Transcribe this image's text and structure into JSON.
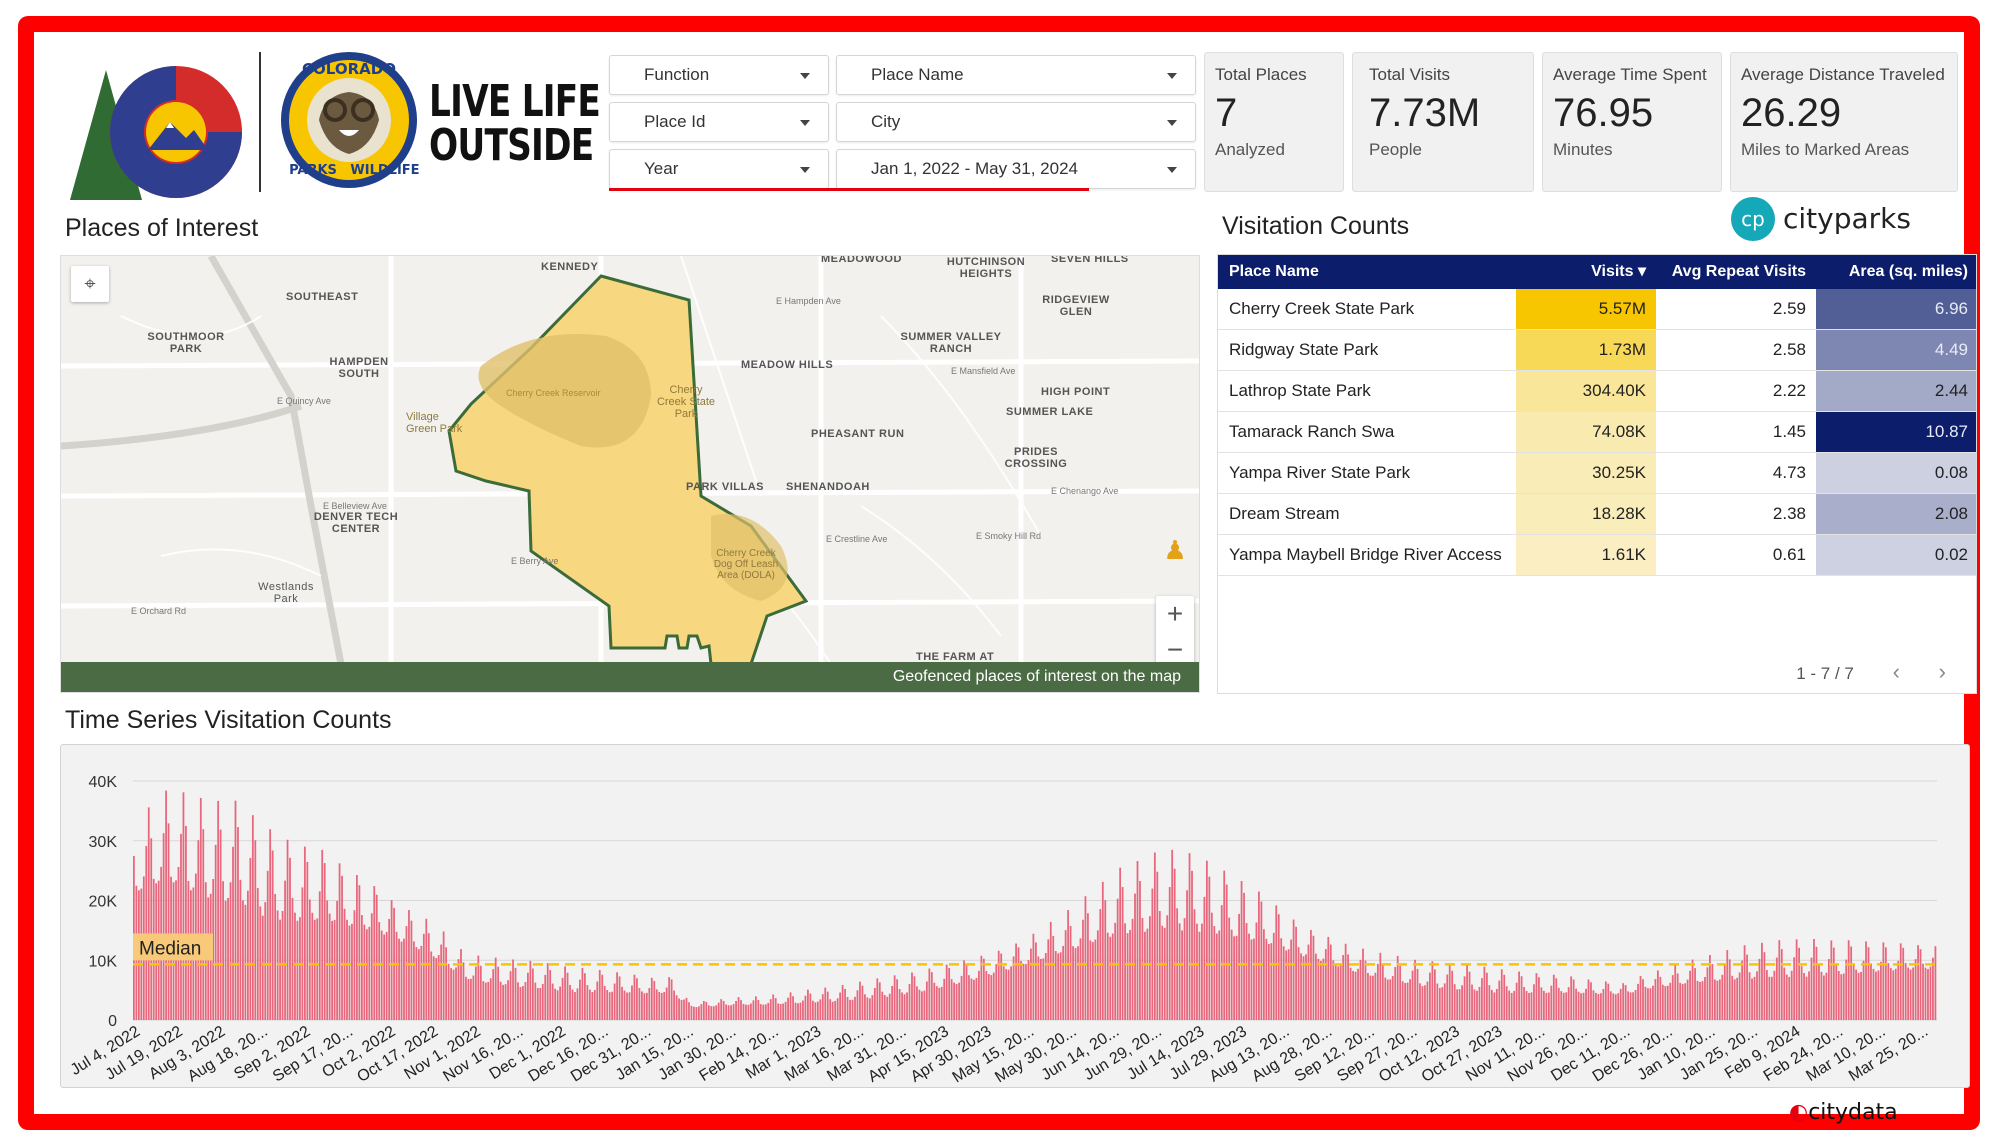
{
  "header": {
    "logo_text_line1": "LIVE LIFE",
    "logo_text_line2": "OUTSIDE",
    "cpw_logo_words": [
      "COLORADO",
      "PARKS",
      "WILDLIFE"
    ]
  },
  "filters": [
    {
      "label": "Function"
    },
    {
      "label": "Place Name"
    },
    {
      "label": "Place Id"
    },
    {
      "label": "City"
    },
    {
      "label": "Year"
    },
    {
      "label": "Jan 1, 2022 - May 31, 2024"
    }
  ],
  "kpis": [
    {
      "label": "Total Places",
      "value": "7",
      "sub": "Analyzed"
    },
    {
      "label": "Total Visits",
      "value": "7.73M",
      "sub": "People"
    },
    {
      "label": "Average Time Spent",
      "value": "76.95",
      "sub": "Minutes"
    },
    {
      "label": "Average Distance Traveled",
      "value": "26.29",
      "sub": "Miles to Marked Areas"
    }
  ],
  "map": {
    "title": "Places of Interest",
    "caption": "Geofenced places of interest on the map",
    "labels": [
      "KENNEDY",
      "SOUTHEAST",
      "SOUTHMOOR PARK",
      "HAMPDEN SOUTH",
      "MEADOW HILLS",
      "SUMMER VALLEY RANCH",
      "RIDGEVIEW GLEN",
      "HIGH POINT",
      "PHEASANT RUN",
      "SUMMER LAKE",
      "PRIDES CROSSING",
      "PARK VILLAS",
      "SHENANDOAH",
      "DENVER TECH CENTER",
      "Westlands Park",
      "HUTCHINSON HEIGHTS",
      "THE FARM AT",
      "MEADOWOOD",
      "SEVEN HILLS"
    ],
    "streets": [
      "E Quincy Ave",
      "E Hampden Ave",
      "E Belleview Ave",
      "E Orchard Rd",
      "E Berry Ave",
      "E Crestline Ave",
      "E Smoky Hill Rd",
      "E Mansfield Ave",
      "E Chenango Ave"
    ],
    "poi_labels": [
      "Cherry Creek Reservoir",
      "Cherry Creek State Park",
      "Village Green Park",
      "Cherry Creek Dog Off Leash Area (DOLA)"
    ],
    "zoom_in": "+",
    "zoom_out": "−"
  },
  "table": {
    "title": "Visitation Counts",
    "brand": "cityparks",
    "brand_mark": "cp",
    "columns": {
      "name": "Place Name",
      "visits": "Visits ▾",
      "repeat": "Avg Repeat Visits",
      "area": "Area (sq. miles)"
    },
    "rows": [
      {
        "name": "Cherry Creek State Park",
        "visits": "5.57M",
        "repeat": "2.59",
        "area": "6.96",
        "visits_intensity": 1.0,
        "area_intensity": 0.64
      },
      {
        "name": "Ridgway State Park",
        "visits": "1.73M",
        "repeat": "2.58",
        "area": "4.49",
        "visits_intensity": 0.31,
        "area_intensity": 0.41
      },
      {
        "name": "Lathrop State Park",
        "visits": "304.40K",
        "repeat": "2.22",
        "area": "2.44",
        "visits_intensity": 0.05,
        "area_intensity": 0.22
      },
      {
        "name": "Tamarack Ranch Swa",
        "visits": "74.08K",
        "repeat": "1.45",
        "area": "10.87",
        "visits_intensity": 0.013,
        "area_intensity": 1.0
      },
      {
        "name": "Yampa River State Park",
        "visits": "30.25K",
        "repeat": "4.73",
        "area": "0.08",
        "visits_intensity": 0.005,
        "area_intensity": 0.007
      },
      {
        "name": "Dream Stream",
        "visits": "18.28K",
        "repeat": "2.38",
        "area": "2.08",
        "visits_intensity": 0.003,
        "area_intensity": 0.19
      },
      {
        "name": "Yampa Maybell Bridge River Access",
        "visits": "1.61K",
        "repeat": "0.61",
        "area": "0.02",
        "visits_intensity": 0.0003,
        "area_intensity": 0.002
      }
    ],
    "pager": "1 - 7 / 7",
    "prev": "‹",
    "next": "›"
  },
  "colors": {
    "frame": "#ff0000",
    "header_bg": "#0c1d6b",
    "visits_max": "#f7c600",
    "area_max": "#0c1d6b",
    "bar": "#e8677c",
    "median": "#f7c600",
    "map_poly": "#f7d77f",
    "map_poly_stroke": "#3c6b3a"
  },
  "chart_data": {
    "type": "bar",
    "title": "Time Series Visitation Counts",
    "x_tick_labels": [
      "Jul 4, 2022",
      "Jul 19, 2022",
      "Aug 3, 2022",
      "Aug 18, 20...",
      "Sep 2, 2022",
      "Sep 17, 20...",
      "Oct 2, 2022",
      "Oct 17, 2022",
      "Nov 1, 2022",
      "Nov 16, 20...",
      "Dec 1, 2022",
      "Dec 16, 20...",
      "Dec 31, 20...",
      "Jan 15, 20...",
      "Jan 30, 20...",
      "Feb 14, 20...",
      "Mar 1, 2023",
      "Mar 16, 20...",
      "Mar 31, 20...",
      "Apr 15, 2023",
      "Apr 30, 2023",
      "May 15, 20...",
      "May 30, 20...",
      "Jun 14, 20...",
      "Jun 29, 20...",
      "Jul 14, 2023",
      "Jul 29, 2023",
      "Aug 13, 20...",
      "Aug 28, 20...",
      "Sep 12, 20...",
      "Sep 27, 20...",
      "Oct 12, 2023",
      "Oct 27, 2023",
      "Nov 11, 20...",
      "Nov 26, 20...",
      "Dec 11, 20...",
      "Dec 26, 20...",
      "Jan 10, 20...",
      "Jan 25, 20...",
      "Feb 9, 2024",
      "Feb 24, 20...",
      "Mar 10, 20...",
      "Mar 25, 20..."
    ],
    "y_ticks": [
      "40K",
      "30K",
      "20K",
      "10K",
      "0"
    ],
    "ylim": [
      0,
      40000
    ],
    "median_label": "Median",
    "median_value": 9300,
    "weekly_series": [
      25000,
      27000,
      28500,
      27500,
      26500,
      26000,
      26000,
      24000,
      22500,
      21500,
      21000,
      21000,
      19500,
      18500,
      17500,
      16000,
      14500,
      13000,
      11000,
      8500,
      7800,
      7500,
      7200,
      7000,
      6700,
      6300,
      6200,
      6000,
      5800,
      5600,
      5300,
      5600,
      2500,
      2600,
      2800,
      3000,
      3000,
      3200,
      3400,
      3700,
      3900,
      4200,
      4600,
      5000,
      5400,
      5800,
      6400,
      7000,
      7700,
      8500,
      9400,
      10500,
      11500,
      12800,
      14000,
      15500,
      17000,
      18500,
      19000,
      20000,
      20200,
      19800,
      19000,
      18000,
      17000,
      16000,
      14500,
      13000,
      12000,
      11000,
      9800,
      9000,
      8300,
      7800,
      7200,
      7000,
      6700,
      6500,
      6300,
      6000,
      5800,
      5700,
      5600,
      5500,
      5200,
      5100,
      5000,
      6000,
      6500,
      7000,
      7600,
      8000,
      8500,
      9000,
      9200,
      9500,
      9600,
      9700,
      9600,
      9800,
      9800,
      9900,
      10000,
      10000
    ]
  }
}
